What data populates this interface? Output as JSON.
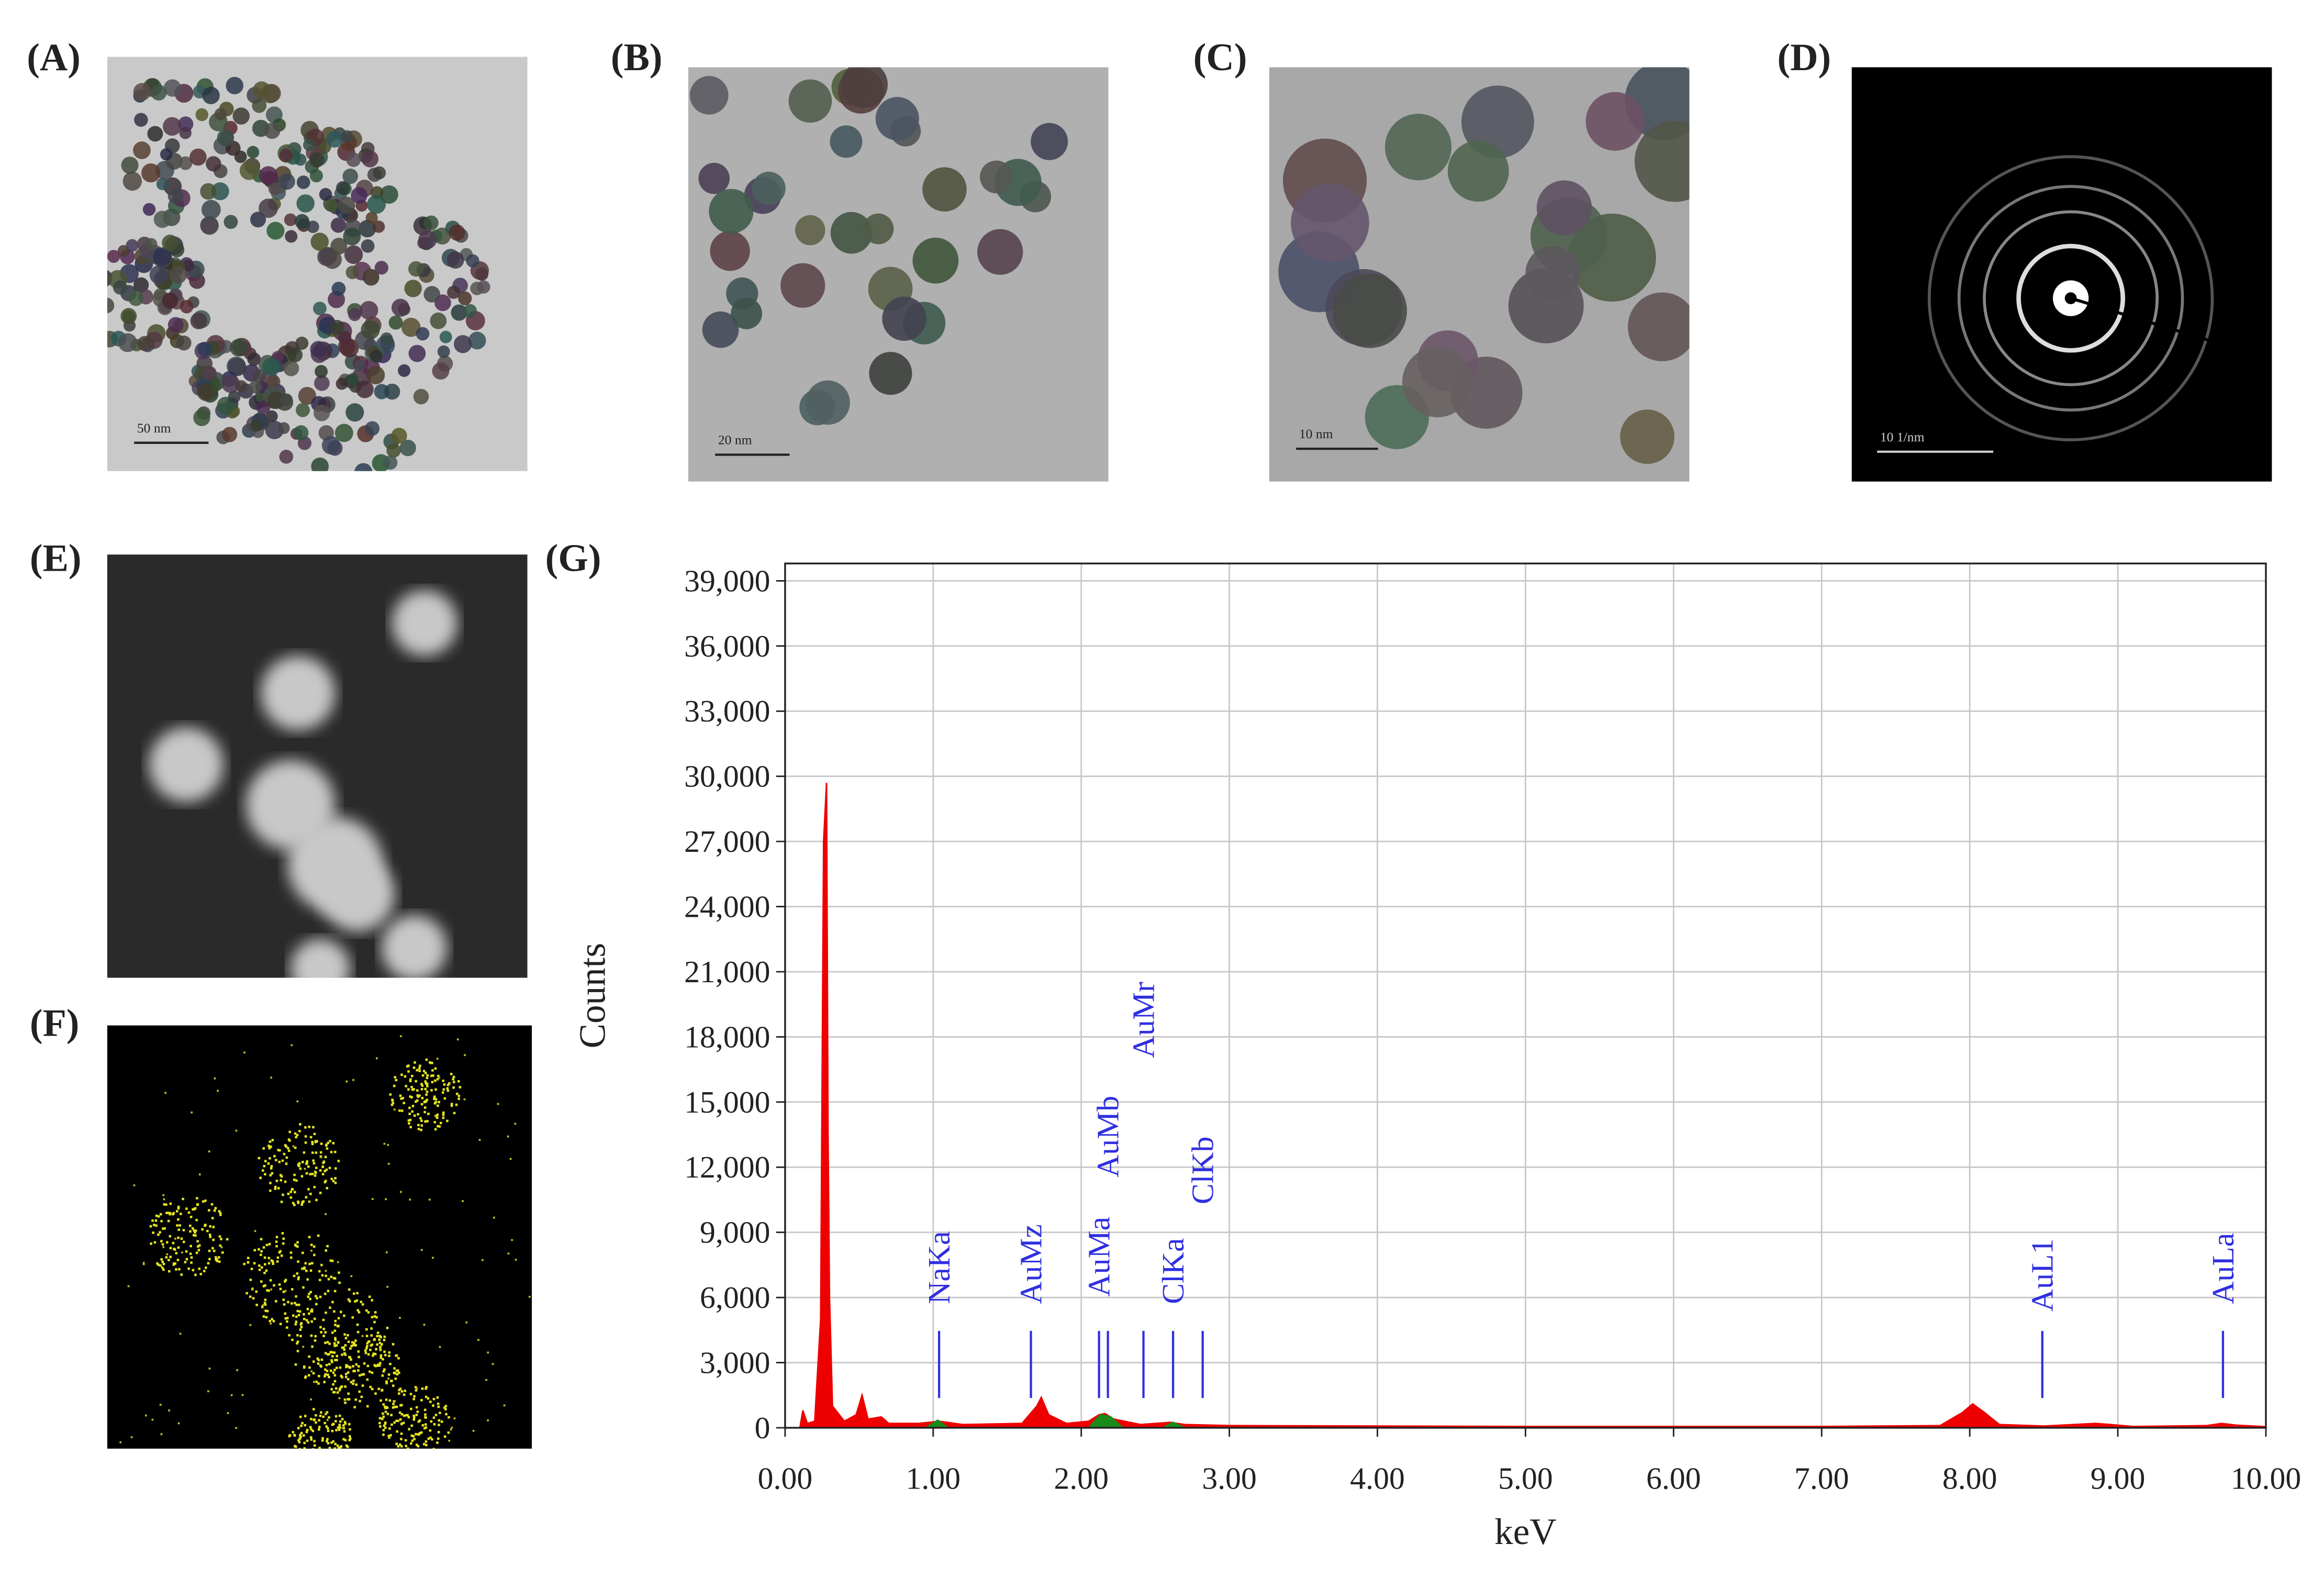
{
  "panels": [
    {
      "label": "(A)",
      "scale_bar": "50 nm"
    },
    {
      "label": "(B)",
      "scale_bar": "20 nm"
    },
    {
      "label": "(C)",
      "scale_bar": "10 nm"
    },
    {
      "label": "(D)",
      "scale_bar": "10 1/nm"
    },
    {
      "label": "(E)"
    },
    {
      "label": "(F)"
    }
  ],
  "chart_data": {
    "type": "area",
    "label": "(G)",
    "x_label": "keV",
    "y_label": "Counts",
    "xlim": [
      0,
      10
    ],
    "ylim": [
      0,
      39800
    ],
    "xticks": [
      {
        "value": 0,
        "label": "0.00"
      },
      {
        "value": 1,
        "label": "1.00"
      },
      {
        "value": 2,
        "label": "2.00"
      },
      {
        "value": 3,
        "label": "3.00"
      },
      {
        "value": 4,
        "label": "4.00"
      },
      {
        "value": 5,
        "label": "5.00"
      },
      {
        "value": 6,
        "label": "6.00"
      },
      {
        "value": 7,
        "label": "7.00"
      },
      {
        "value": 8,
        "label": "8.00"
      },
      {
        "value": 9,
        "label": "9.00"
      },
      {
        "value": 10,
        "label": "10.00"
      }
    ],
    "yticks": [
      0,
      {
        "value": 3000,
        "label": "3,000"
      },
      {
        "value": 6000,
        "label": "6,000"
      },
      {
        "value": 9000,
        "label": "9,000"
      },
      {
        "value": 12000,
        "label": "12,000"
      },
      {
        "value": 15000,
        "label": "15,000"
      },
      {
        "value": 18000,
        "label": "18,000"
      },
      {
        "value": 21000,
        "label": "21,000"
      },
      {
        "value": 24000,
        "label": "24,000"
      },
      {
        "value": 27000,
        "label": "27,000"
      },
      {
        "value": 30000,
        "label": "30,000"
      },
      {
        "value": 33000,
        "label": "33,000"
      },
      {
        "value": 36000,
        "label": "36,000"
      },
      {
        "value": 39000,
        "label": "39,000"
      }
    ],
    "grid": true,
    "series": [
      {
        "color": "#ee0000",
        "x": [
          0.1,
          0.12,
          0.15,
          0.2,
          0.24,
          0.26,
          0.28,
          0.29,
          0.3,
          0.32,
          0.4,
          0.48,
          0.52,
          0.56,
          0.65,
          0.7,
          0.9,
          1.04,
          1.2,
          1.6,
          1.7,
          1.73,
          1.78,
          1.9,
          2.05,
          2.12,
          2.16,
          2.22,
          2.4,
          2.6,
          2.7,
          3,
          4,
          5,
          6,
          7,
          7.8,
          7.95,
          8.02,
          8.1,
          8.2,
          8.5,
          8.85,
          8.95,
          9.1,
          9.6,
          9.7,
          9.8,
          10
        ],
        "values": [
          0,
          800,
          200,
          300,
          5000,
          27000,
          29700,
          13600,
          6000,
          1000,
          300,
          600,
          1500,
          400,
          500,
          200,
          200,
          300,
          150,
          200,
          1000,
          1400,
          600,
          200,
          300,
          600,
          650,
          400,
          150,
          250,
          150,
          100,
          80,
          60,
          60,
          60,
          100,
          700,
          1100,
          700,
          150,
          80,
          200,
          150,
          60,
          100,
          200,
          120,
          50
        ]
      },
      {
        "color": "#1a8a1a",
        "x": [
          0.95,
          1.03,
          1.1,
          1.5,
          2.05,
          2.13,
          2.2,
          2.28,
          2.4,
          2.55,
          2.62,
          2.7
        ],
        "values": [
          0,
          350,
          0,
          null,
          0,
          600,
          500,
          0,
          null,
          0,
          250,
          0
        ]
      }
    ],
    "annotations": [
      {
        "label": "NaKa",
        "x": 1.04
      },
      {
        "label": "AuMz",
        "x": 1.66
      },
      {
        "label": "AuMa",
        "x": 2.12
      },
      {
        "label": "AuMb",
        "x": 2.18
      },
      {
        "label": "AuMr",
        "x": 2.42
      },
      {
        "label": "ClKa",
        "x": 2.62
      },
      {
        "label": "ClKb",
        "x": 2.82
      },
      {
        "label": "AuL1",
        "x": 8.49
      },
      {
        "label": "AuLa",
        "x": 9.71
      }
    ]
  }
}
